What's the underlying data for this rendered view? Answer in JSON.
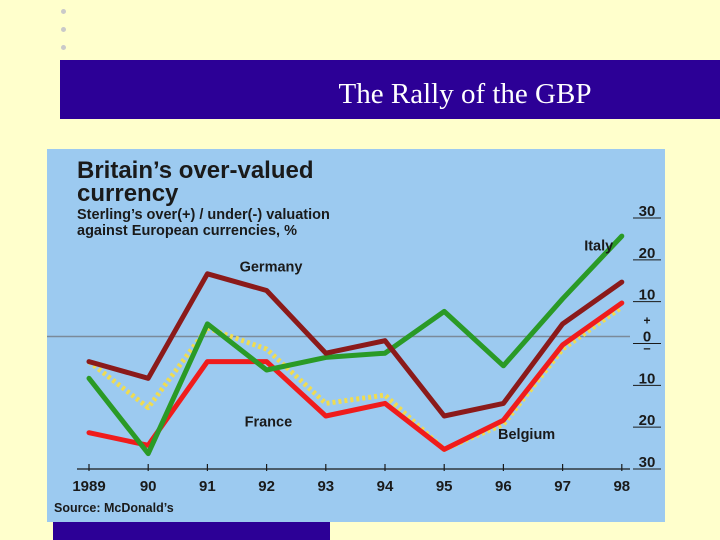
{
  "slide": {
    "title": "The Rally of the GBP"
  },
  "chart_data": {
    "type": "line",
    "title_lines": [
      "Britain’s over-valued",
      "currency"
    ],
    "subtitle_lines": [
      "Sterling’s over(+) / under(-) valuation",
      "against European currencies, %"
    ],
    "source": "Source: McDonald’s",
    "x": [
      "1989",
      "90",
      "91",
      "92",
      "93",
      "94",
      "95",
      "96",
      "97",
      "98"
    ],
    "ylim": [
      -30,
      30
    ],
    "y_tick_labels": [
      {
        "value": 30,
        "label": "30"
      },
      {
        "value": 20,
        "label": "20"
      },
      {
        "value": 10,
        "label": "10"
      },
      {
        "value": 0,
        "label": "0"
      },
      {
        "value": -10,
        "label": "10"
      },
      {
        "value": -20,
        "label": "20"
      },
      {
        "value": -30,
        "label": "30"
      }
    ],
    "zero_marks": {
      "plus": "+",
      "minus": "–"
    },
    "series": [
      {
        "name": "Germany",
        "color": "#8b1a1a",
        "style": "solid",
        "values": [
          -6,
          -10,
          15,
          11,
          -4,
          -1,
          -19,
          -16,
          3,
          13
        ]
      },
      {
        "name": "Italy",
        "color": "#2a9a26",
        "style": "solid",
        "values": [
          -10,
          -28,
          3,
          -8,
          -5,
          -4,
          6,
          -7,
          9,
          24
        ]
      },
      {
        "name": "France",
        "color": "#f01c1c",
        "style": "solid",
        "values": [
          -23,
          -26,
          -6,
          -6,
          -19,
          -16,
          -27,
          -20,
          -2,
          8
        ]
      },
      {
        "name": "Belgium",
        "color": "#f0dc50",
        "style": "dotted",
        "values": [
          -6,
          -17,
          2,
          -3,
          -16,
          -14,
          -27,
          -21,
          -3,
          7
        ]
      }
    ],
    "grid": false,
    "legend": "labels-on-lines",
    "zero_line": true
  }
}
